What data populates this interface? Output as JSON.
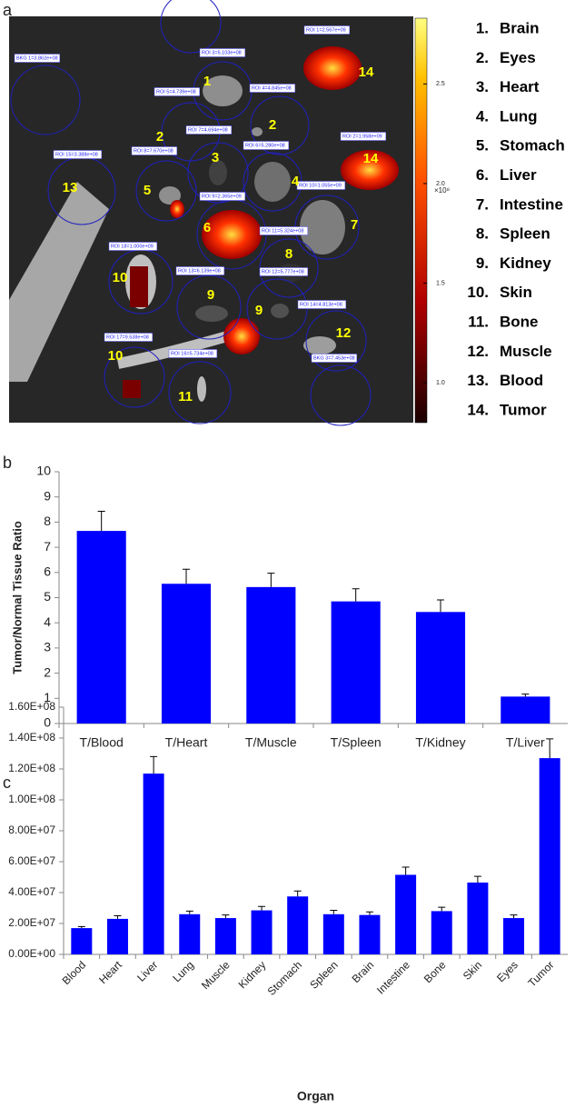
{
  "panel_labels": [
    "a",
    "b",
    "c"
  ],
  "image_panel": {
    "roi_labels": [
      "BKG 1=3.862e+08",
      "ROI 3=5.103e+08",
      "ROI 1=2.567e+09",
      "ROI 5=4.739e+08",
      "ROI 4=4.845e+08",
      "ROI 7=4.694e+08",
      "ROI 2=1.958e+09",
      "ROI 6=5.280e+08",
      "ROI 8=7.670e+08",
      "ROI 15=3.388e+08",
      "ROI 10=1.055e+09",
      "ROI 9=2.365e+09",
      "ROI 11=5.324e+08",
      "ROI 18=1.000e+09",
      "ROI 13=6.139e+08",
      "ROI 12=5.777e+08",
      "ROI 14=4.813e+08",
      "ROI 17=9.538e+08",
      "ROI 16=5.734e+08",
      "BKG 3=7.453e+08"
    ],
    "organ_numbers": [
      "1",
      "2",
      "2",
      "3",
      "4",
      "5",
      "6",
      "7",
      "8",
      "9",
      "9",
      "10",
      "10",
      "11",
      "12",
      "13",
      "14",
      "14"
    ],
    "colorbar": {
      "unit_label": "×10⁸",
      "lim": [
        0.8,
        2.83
      ],
      "ticks": [
        {
          "value": 2.5,
          "label": "2.5"
        },
        {
          "value": 2.0,
          "label": "2.0"
        },
        1.5,
        {
          "value": 1.0,
          "label": "1.0"
        }
      ]
    },
    "legend": [
      {
        "number": "1.",
        "name": "Brain"
      },
      {
        "number": "2.",
        "name": "Eyes"
      },
      {
        "number": "3.",
        "name": "Heart"
      },
      {
        "number": "4.",
        "name": "Lung"
      },
      {
        "number": "5.",
        "name": "Stomach"
      },
      {
        "number": "6.",
        "name": "Liver"
      },
      {
        "number": "7.",
        "name": "Intestine"
      },
      {
        "number": "8.",
        "name": "Spleen"
      },
      {
        "number": "9.",
        "name": "Kidney"
      },
      {
        "number": "10.",
        "name": "Skin"
      },
      {
        "number": "11.",
        "name": "Bone"
      },
      {
        "number": "12.",
        "name": "Muscle"
      },
      {
        "number": "13.",
        "name": "Blood"
      },
      {
        "number": "14.",
        "name": "Tumor"
      }
    ]
  },
  "chart_data": [
    {
      "type": "bar",
      "y_label": "Tumor/Normal Tissue Ratio",
      "color": "#0000ff",
      "categories": [
        "T/Blood",
        "T/Heart",
        "T/Muscle",
        "T/Spleen",
        "T/Kidney",
        "T/Liver"
      ],
      "values": [
        7.65,
        5.55,
        5.42,
        4.85,
        4.43,
        1.07
      ],
      "errors": [
        0.78,
        0.58,
        0.55,
        0.5,
        0.48,
        0.1
      ],
      "ylim": [
        0,
        10
      ],
      "yticks": [
        0,
        1,
        2,
        3,
        4,
        5,
        6,
        7,
        8,
        9,
        10
      ],
      "grid": false
    },
    {
      "type": "bar",
      "x_label": "Organ",
      "color": "#0000ff",
      "categories": [
        "Blood",
        "Heart",
        "Liver",
        "Lung",
        "Muscle",
        "Kidney",
        "Stomach",
        "Spleen",
        "Brain",
        "Intestine",
        "Bone",
        "Skin",
        "Eyes",
        "Tumor"
      ],
      "values": [
        17000000,
        23000000,
        117000000,
        26000000,
        23500000,
        28500000,
        37500000,
        26000000,
        25500000,
        51500000,
        28000000,
        46500000,
        23500000,
        127000000
      ],
      "errors": [
        1000000,
        2000000,
        11000000,
        2000000,
        2000000,
        2500000,
        3500000,
        2500000,
        2000000,
        5000000,
        2500000,
        4000000,
        2000000,
        12500000
      ],
      "ylim": [
        0,
        160000000
      ],
      "yticks": [
        {
          "value": 0,
          "label": "0.00E+00"
        },
        {
          "value": 20000000,
          "label": "2.00E+07"
        },
        {
          "value": 40000000,
          "label": "4.00E+07"
        },
        {
          "value": 60000000,
          "label": "6.00E+07"
        },
        {
          "value": 80000000,
          "label": "8.00E+07"
        },
        {
          "value": 100000000,
          "label": "1.00E+08"
        },
        {
          "value": 120000000,
          "label": "1.20E+08"
        },
        {
          "value": 140000000,
          "label": "1.40E+08"
        },
        {
          "value": 160000000,
          "label": "1.60E+08"
        }
      ],
      "grid": false
    }
  ]
}
